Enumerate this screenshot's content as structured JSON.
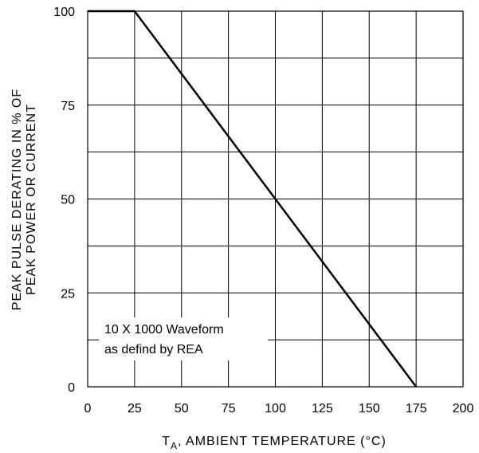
{
  "chart_data": {
    "type": "line",
    "xlabel_main": "T",
    "xlabel_sub": "A",
    "xlabel_rest": ", AMBIENT TEMPERATURE (°C)",
    "ylabel_line1": "PEAK PULSE DERATING IN % OF",
    "ylabel_line2": "PEAK POWER OR CURRENT",
    "xlim": [
      0,
      200
    ],
    "ylim": [
      0,
      100
    ],
    "x_ticks": [
      0,
      25,
      50,
      75,
      100,
      125,
      150,
      175,
      200
    ],
    "y_ticks": [
      0,
      25,
      50,
      75,
      100
    ],
    "grid": true,
    "annotation": [
      "10 X 1000 Waveform",
      "as defind by REA"
    ],
    "series": [
      {
        "x": [
          0,
          25,
          175
        ],
        "y": [
          100,
          100,
          0
        ]
      }
    ]
  }
}
